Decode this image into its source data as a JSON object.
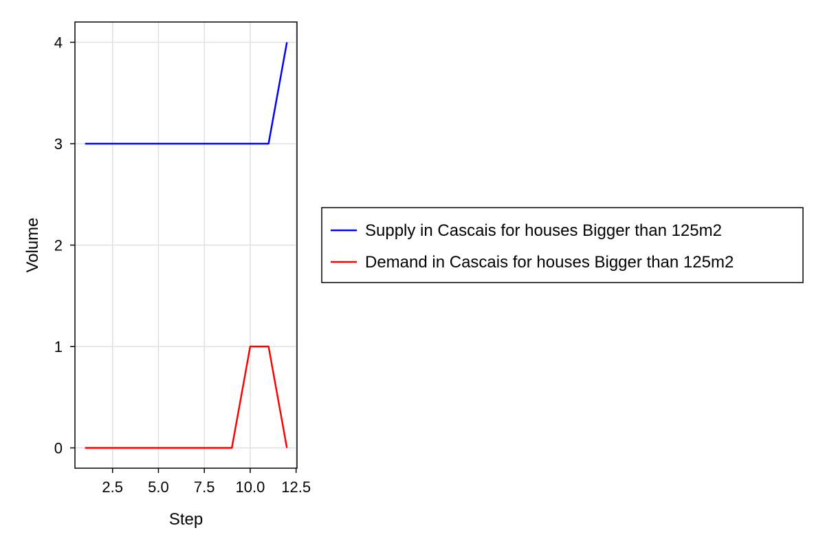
{
  "chart_data": {
    "type": "line",
    "title": "",
    "xlabel": "Step",
    "ylabel": "Volume",
    "xlim": [
      0.45,
      12.55
    ],
    "ylim": [
      -0.2,
      4.2
    ],
    "xticks": [
      2.5,
      5.0,
      7.5,
      10.0,
      12.5
    ],
    "xtick_labels": [
      "2.5",
      "5.0",
      "7.5",
      "10.0",
      "12.5"
    ],
    "yticks": [
      0,
      1,
      2,
      3,
      4
    ],
    "ytick_labels": [
      "0",
      "1",
      "2",
      "3",
      "4"
    ],
    "grid": true,
    "legend_position": "right-outside",
    "x": [
      1,
      2,
      3,
      4,
      5,
      6,
      7,
      8,
      9,
      10,
      11,
      12
    ],
    "series": [
      {
        "name": "Supply in Cascais for houses Bigger than 125m2",
        "color": "#0000ff",
        "values": [
          3,
          3,
          3,
          3,
          3,
          3,
          3,
          3,
          3,
          3,
          3,
          4
        ]
      },
      {
        "name": "Demand in Cascais for houses Bigger than 125m2",
        "color": "#ff0000",
        "values": [
          0,
          0,
          0,
          0,
          0,
          0,
          0,
          0,
          0,
          1,
          1,
          0
        ]
      }
    ]
  }
}
